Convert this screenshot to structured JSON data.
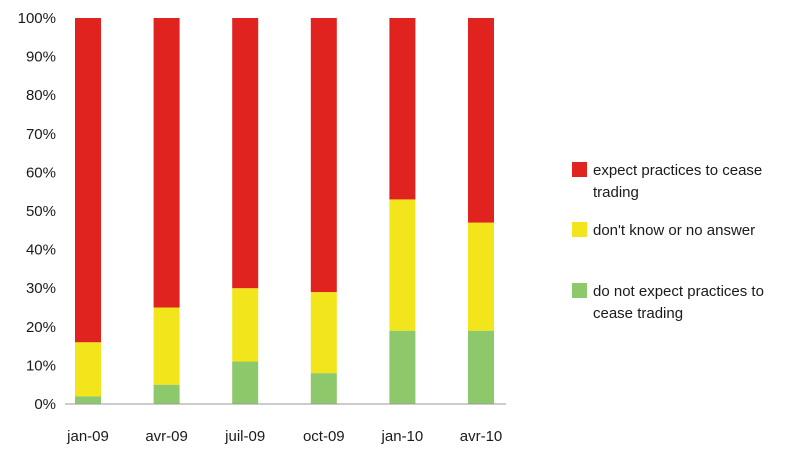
{
  "chart_data": {
    "type": "bar",
    "stacked": true,
    "percent_stacked": true,
    "title": "",
    "xlabel": "",
    "ylabel": "",
    "ylim": [
      0,
      100
    ],
    "y_tick_labels": [
      "0%",
      "10%",
      "20%",
      "30%",
      "40%",
      "50%",
      "60%",
      "70%",
      "80%",
      "90%",
      "100%"
    ],
    "categories": [
      "jan-09",
      "avr-09",
      "juil-09",
      "oct-09",
      "jan-10",
      "avr-10"
    ],
    "grid": false,
    "legend_position": "right",
    "series": [
      {
        "name": "do not expect practices to cease trading",
        "color": "#8dc86a",
        "values": [
          2,
          5,
          11,
          8,
          19,
          19
        ]
      },
      {
        "name": "don't know or no answer",
        "color": "#f2e51c",
        "values": [
          14,
          20,
          19,
          21,
          34,
          28
        ]
      },
      {
        "name": "expect practices to cease trading",
        "color": "#e0231f",
        "values": [
          84,
          75,
          70,
          71,
          47,
          53
        ]
      }
    ],
    "legend": [
      {
        "lines": [
          "expect practices to cease",
          "trading"
        ],
        "color": "#e0231f"
      },
      {
        "lines": [
          "don't know or no answer"
        ],
        "color": "#f2e51c"
      },
      {
        "lines": [
          "do not expect practices to",
          "cease trading"
        ],
        "color": "#8dc86a"
      }
    ]
  }
}
